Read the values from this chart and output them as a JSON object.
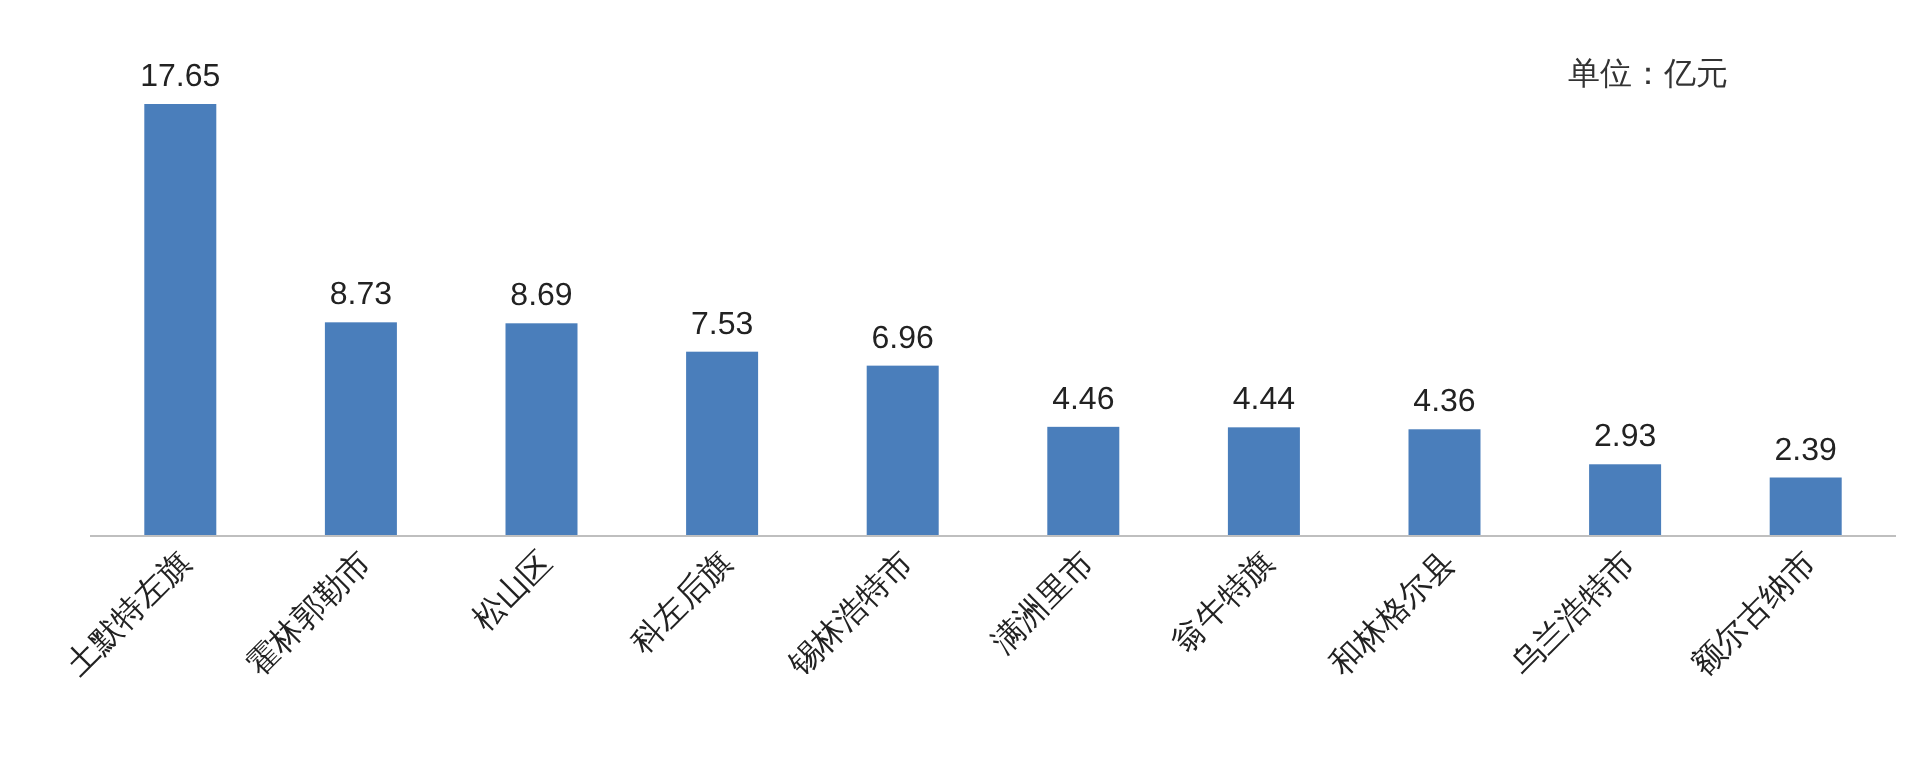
{
  "chart_data": {
    "type": "bar",
    "categories": [
      "土默特左旗",
      "霍林郭勒市",
      "松山区",
      "科左后旗",
      "锡林浩特市",
      "满洲里市",
      "翁牛特旗",
      "和林格尔县",
      "乌兰浩特市",
      "额尔古纳市"
    ],
    "values": [
      17.65,
      8.73,
      8.69,
      7.53,
      6.96,
      4.46,
      4.44,
      4.36,
      2.93,
      2.39
    ],
    "color": "#4a7ebb",
    "data_labels": true,
    "annotations": [
      "单位：亿元"
    ]
  }
}
